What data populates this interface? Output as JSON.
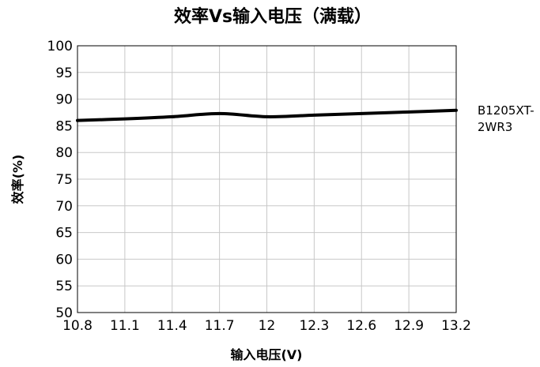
{
  "chart_data": {
    "type": "line",
    "title": "效率Vs输入电压（满载）",
    "xlabel": "输入电压(V)",
    "ylabel": "效率(%)",
    "xlim": [
      10.8,
      13.2
    ],
    "ylim": [
      50,
      100
    ],
    "x_ticks": [
      "10.8",
      "11.1",
      "11.4",
      "11.7",
      "12",
      "12.3",
      "12.6",
      "12.9",
      "13.2"
    ],
    "y_ticks": [
      "100",
      "95",
      "90",
      "85",
      "80",
      "75",
      "70",
      "65",
      "60",
      "55",
      "50"
    ],
    "grid": true,
    "legend_position": "right",
    "series": [
      {
        "name": "B1205XT-2WR3",
        "legend_lines": [
          "B1205XT-",
          "2WR3"
        ],
        "color": "#000000",
        "x": [
          10.8,
          11.1,
          11.4,
          11.7,
          12.0,
          12.3,
          12.6,
          12.9,
          13.2
        ],
        "y": [
          86.0,
          86.3,
          86.7,
          87.3,
          86.7,
          87.0,
          87.3,
          87.6,
          87.9
        ]
      }
    ]
  }
}
